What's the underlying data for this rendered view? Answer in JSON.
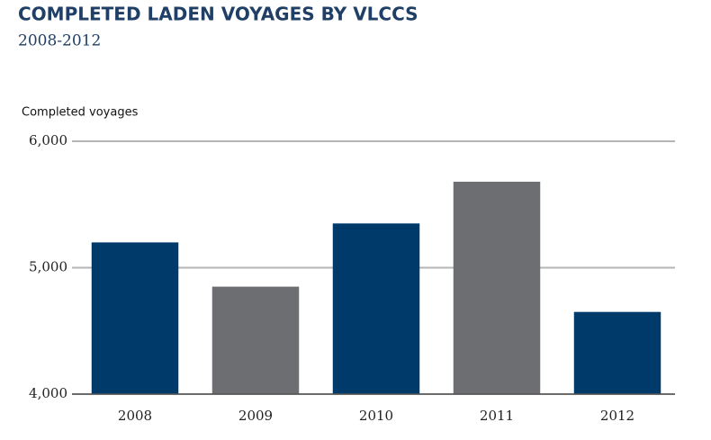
{
  "chart_data": {
    "type": "bar",
    "title": "COMPLETED LADEN VOYAGES BY VLCCS",
    "subtitle": "2008-2012",
    "y_label": "Completed voyages",
    "categories": [
      "2008",
      "2009",
      "2010",
      "2011",
      "2012"
    ],
    "values": [
      5200,
      4850,
      5350,
      5680,
      4650
    ],
    "colors": [
      "#003a6b",
      "#6d6e71",
      "#003a6b",
      "#6d6e71",
      "#003a6b"
    ],
    "ylim": [
      4000,
      6000
    ],
    "yticks": [
      {
        "value": 4000,
        "label": "4,000"
      },
      {
        "value": 5000,
        "label": "5,000"
      },
      {
        "value": 6000,
        "label": "6,000"
      }
    ],
    "grid": true
  }
}
